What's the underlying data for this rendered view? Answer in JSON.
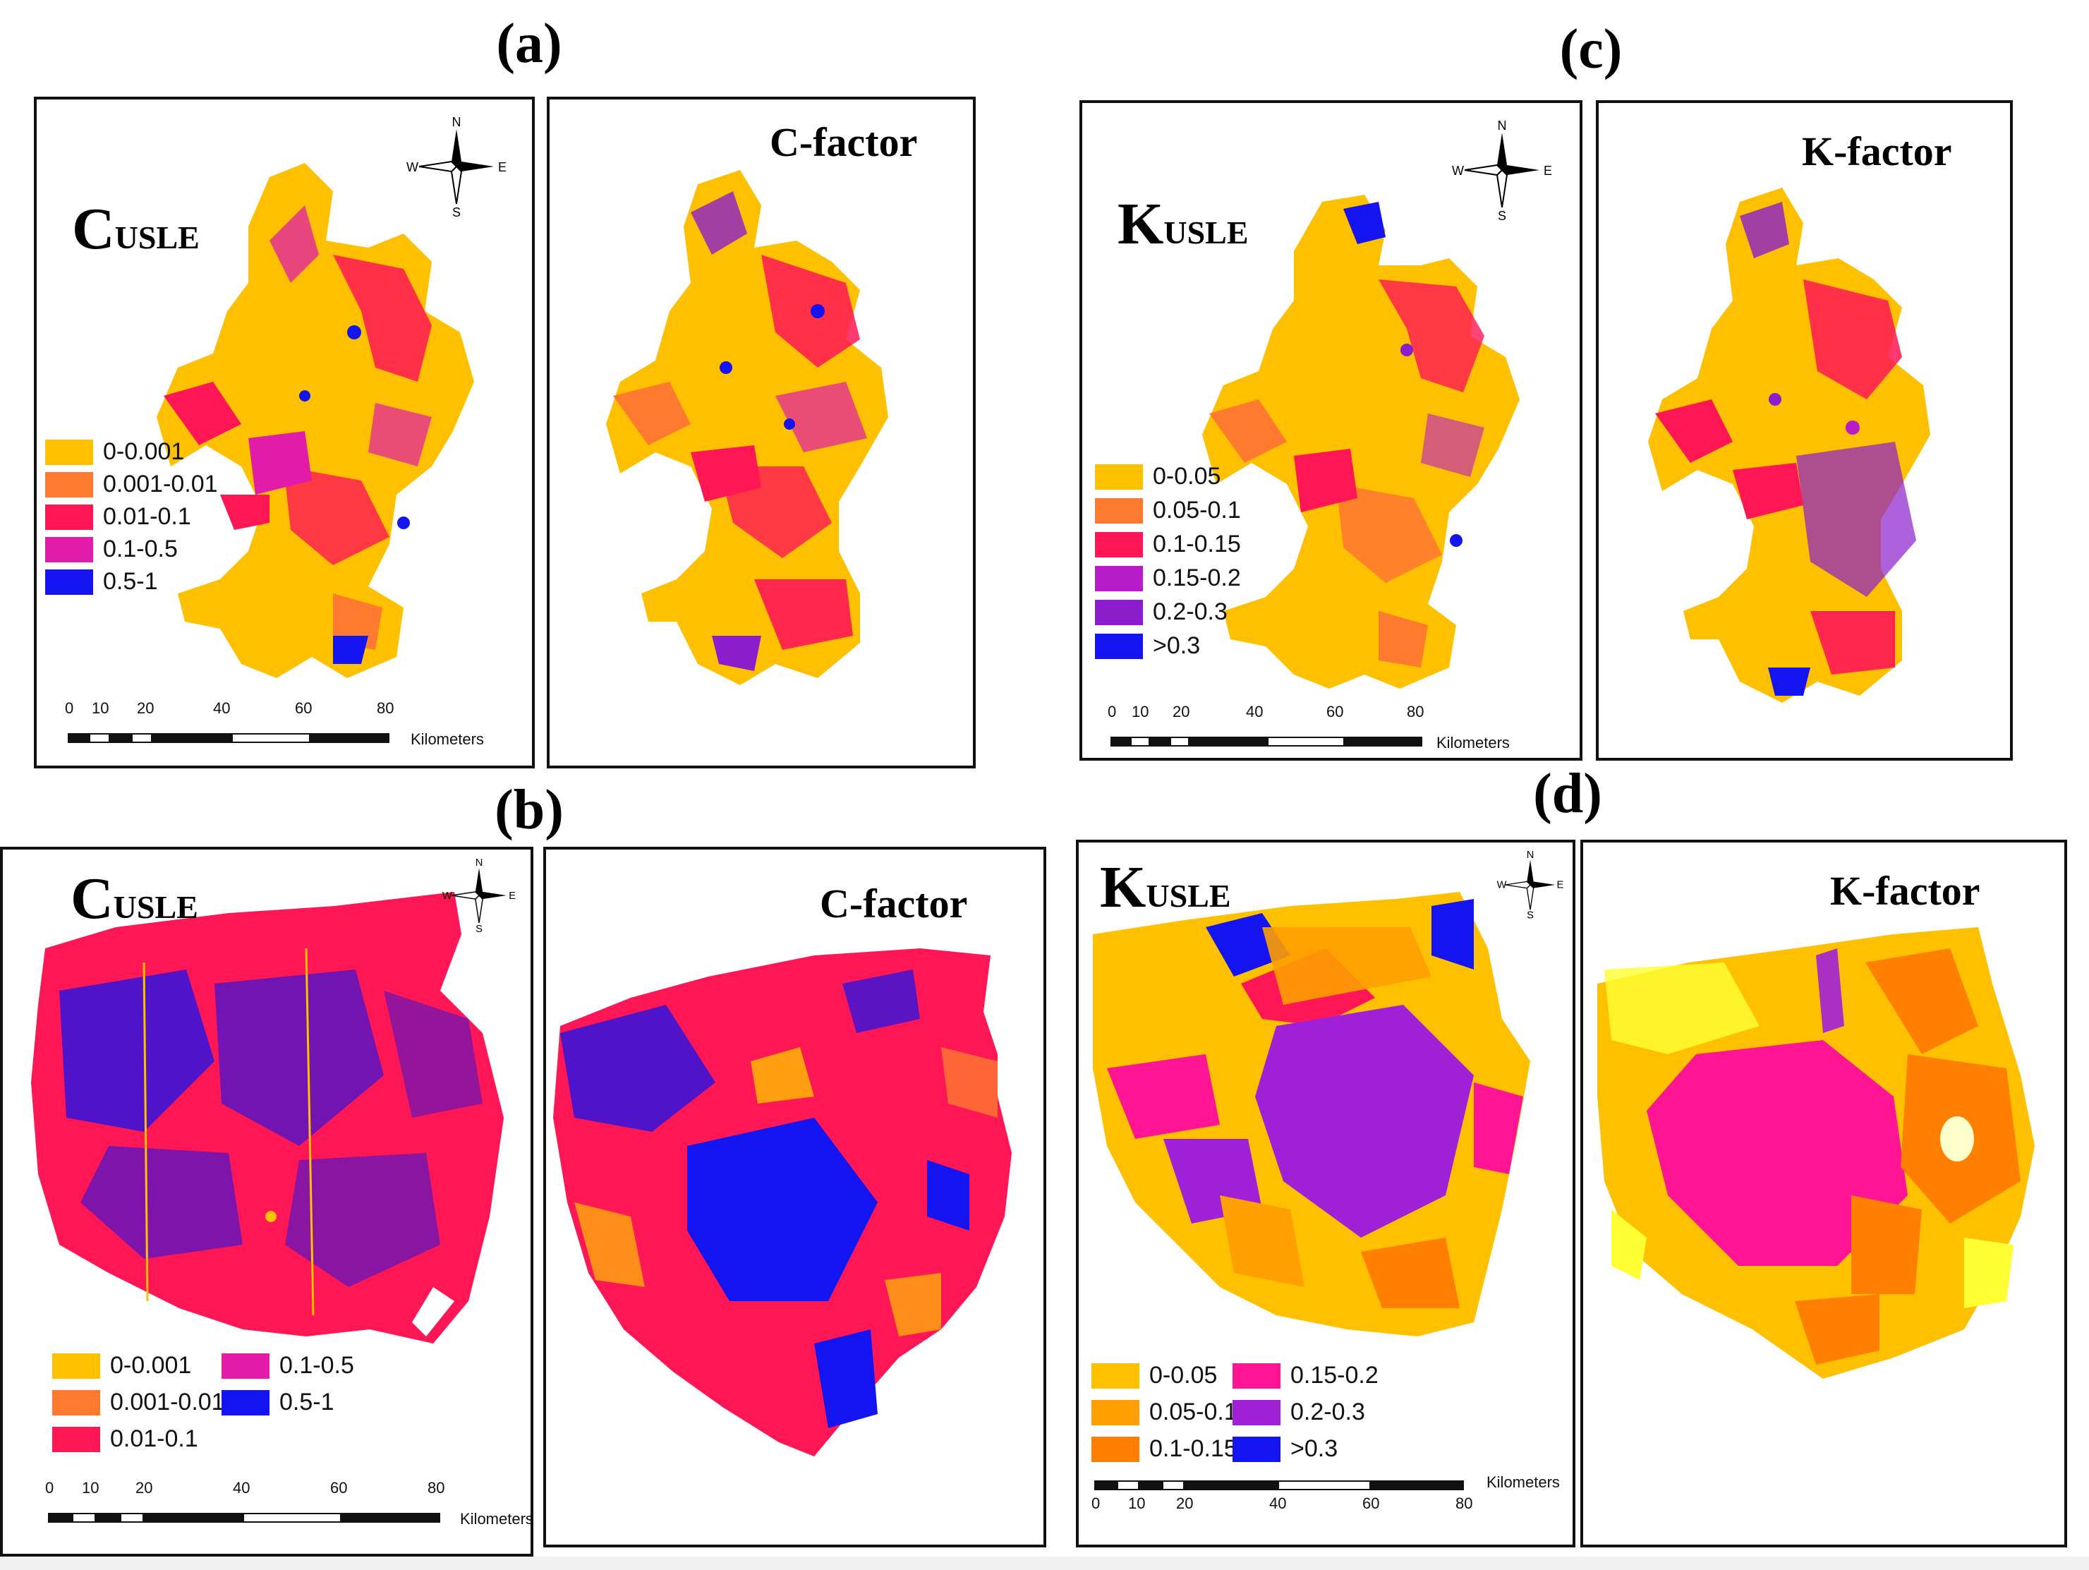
{
  "figure": {
    "panels": {
      "a": {
        "label": "(a)",
        "left_map": {
          "title_cap": "C",
          "title_sub": "USLE"
        },
        "right_map": {
          "title": "C-factor"
        },
        "compass": {
          "n": "N",
          "s": "S",
          "e": "E",
          "w": "W"
        },
        "legend": [
          "0-0.001",
          "0.001-0.01",
          "0.01-0.1",
          "0.1-0.5",
          "0.5-1"
        ],
        "scale": {
          "ticks": [
            "0",
            "10",
            "20",
            "40",
            "60",
            "80"
          ],
          "unit": "Kilometers"
        }
      },
      "b": {
        "label": "(b)",
        "left_map": {
          "title_cap": "C",
          "title_sub": "USLE"
        },
        "right_map": {
          "title": "C-factor"
        },
        "compass": {
          "n": "N",
          "s": "S",
          "e": "E",
          "w": "W"
        },
        "legend": [
          "0-0.001",
          "0.001-0.01",
          "0.01-0.1",
          "0.1-0.5",
          "0.5-1"
        ],
        "scale": {
          "ticks": [
            "0",
            "10",
            "20",
            "40",
            "60",
            "80"
          ],
          "unit": "Kilometers"
        }
      },
      "c": {
        "label": "(c)",
        "left_map": {
          "title_cap": "K",
          "title_sub": "USLE"
        },
        "right_map": {
          "title": "K-factor"
        },
        "compass": {
          "n": "N",
          "s": "S",
          "e": "E",
          "w": "W"
        },
        "legend": [
          "0-0.05",
          "0.05-0.1",
          "0.1-0.15",
          "0.15-0.2",
          "0.2-0.3",
          ">0.3"
        ],
        "scale": {
          "ticks": [
            "0",
            "10",
            "20",
            "40",
            "60",
            "80"
          ],
          "unit": "Kilometers"
        }
      },
      "d": {
        "label": "(d)",
        "left_map": {
          "title_cap": "K",
          "title_sub": "USLE"
        },
        "right_map": {
          "title": "K-factor"
        },
        "compass": {
          "n": "N",
          "s": "S",
          "e": "E",
          "w": "W"
        },
        "legend": [
          "0-0.05",
          "0.15-0.2",
          "0.05-0.1",
          "0.2-0.3",
          "0.1-0.15",
          ">0.3"
        ],
        "scale": {
          "ticks": [
            "0",
            "10",
            "20",
            "40",
            "60",
            "80"
          ],
          "unit": "Kilometers"
        }
      }
    }
  },
  "colors": {
    "c_classes": [
      "#FFC000",
      "#FF7A2F",
      "#FF1654",
      "#E01CA8",
      "#1414F0"
    ],
    "k_classes": [
      "#FFC000",
      "#FF7A2F",
      "#FF1654",
      "#B81CC8",
      "#8A1ECC",
      "#1414F0"
    ],
    "k_classes_d": [
      "#FFC000",
      "#FF1493",
      "#FF9F00",
      "#A020D8",
      "#FF7F00",
      "#1414F0"
    ]
  }
}
